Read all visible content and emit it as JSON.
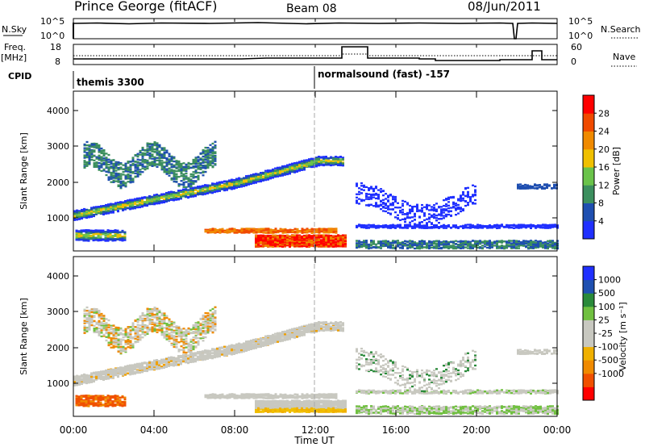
{
  "header": {
    "title": "Prince George (fitACF)",
    "beam": "Beam 08",
    "date": "08/Jun/2011"
  },
  "top_panels": {
    "nsky": {
      "left_label": "N.Sky",
      "left_ticks": [
        "10^5",
        "10^0"
      ],
      "right_ticks": [
        "10^5",
        "10^0"
      ],
      "right_label": "N.Search"
    },
    "freq": {
      "left_label_1": "Freq.",
      "left_label_2": "[MHz]",
      "left_ticks": [
        "18",
        "8"
      ],
      "right_ticks": [
        "60",
        "0"
      ],
      "right_label": "Nave"
    },
    "cpid": {
      "label": "CPID",
      "program_1": "themis 3300",
      "program_2": "normalsound (fast) -157"
    }
  },
  "chart_data": [
    {
      "type": "heatmap",
      "name": "power",
      "ylabel": "Slant Range [km]",
      "yticks": [
        "4000",
        "3000",
        "2000",
        "1000"
      ],
      "xticks": [
        "00:00",
        "04:00",
        "08:00",
        "12:00",
        "16:00",
        "20:00",
        "00:00"
      ],
      "colorbar": {
        "label": "Power [dB]",
        "ticks": [
          "28",
          "24",
          "20",
          "16",
          "12",
          "8",
          "4"
        ],
        "colors": [
          "#2030ff",
          "#1f4fb0",
          "#3c8f5e",
          "#6ac34a",
          "#f0c000",
          "#f08a00",
          "#f04a00",
          "#ff0000"
        ]
      }
    },
    {
      "type": "heatmap",
      "name": "velocity",
      "ylabel": "Slant Range [km]",
      "yticks": [
        "4000",
        "3000",
        "2000",
        "1000"
      ],
      "xticks": [
        "00:00",
        "04:00",
        "08:00",
        "12:00",
        "16:00",
        "20:00",
        "00:00"
      ],
      "xlabel": "Time UT",
      "colorbar": {
        "label": "Velocity [m s⁻¹]",
        "ticks": [
          "1000",
          "500",
          "100",
          "25",
          "-25",
          "-100",
          "-500",
          "-1000"
        ],
        "colors": [
          "#ff0000",
          "#f05000",
          "#f08a00",
          "#f0b000",
          "#c8c8c0",
          "#c8c8c0",
          "#70c040",
          "#2a8a3a",
          "#1f50b0",
          "#2030ff"
        ]
      }
    }
  ]
}
